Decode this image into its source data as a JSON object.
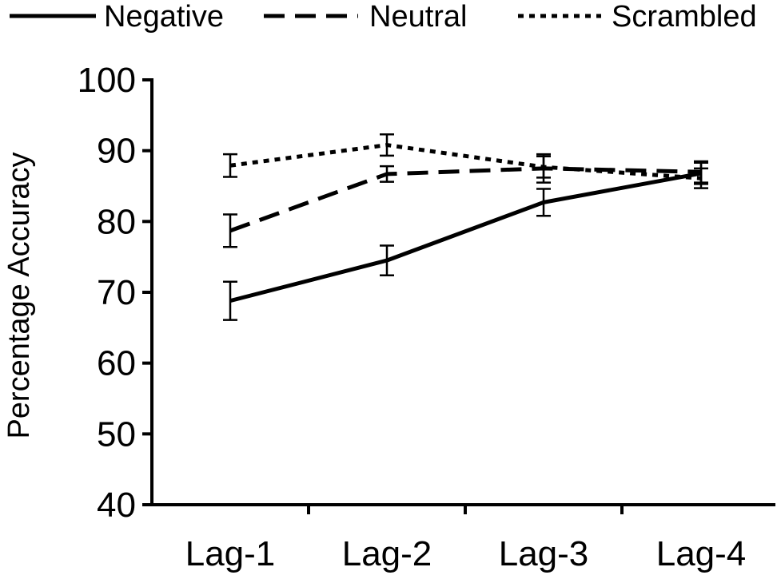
{
  "chart_data": {
    "type": "line",
    "title": "",
    "xlabel": "",
    "ylabel": "Percentage Accuracy",
    "ylim": [
      40,
      100
    ],
    "yticks": [
      40,
      50,
      60,
      70,
      80,
      90,
      100
    ],
    "grid": false,
    "legend_position": "top",
    "categories": [
      "Lag-1",
      "Lag-2",
      "Lag-3",
      "Lag-4"
    ],
    "series": [
      {
        "name": "Negative",
        "style": "solid",
        "color": "#000000",
        "values": [
          68.8,
          74.5,
          82.7,
          86.8
        ],
        "errors": [
          2.7,
          2.1,
          1.9,
          1.5
        ]
      },
      {
        "name": "Neutral",
        "style": "dashed",
        "color": "#000000",
        "values": [
          78.7,
          86.7,
          87.5,
          87.0
        ],
        "errors": [
          2.3,
          1.1,
          2.0,
          1.5
        ]
      },
      {
        "name": "Scrambled",
        "style": "dotted",
        "color": "#000000",
        "values": [
          87.9,
          90.8,
          87.7,
          86.1
        ],
        "errors": [
          1.6,
          1.5,
          1.5,
          1.4
        ]
      }
    ]
  }
}
